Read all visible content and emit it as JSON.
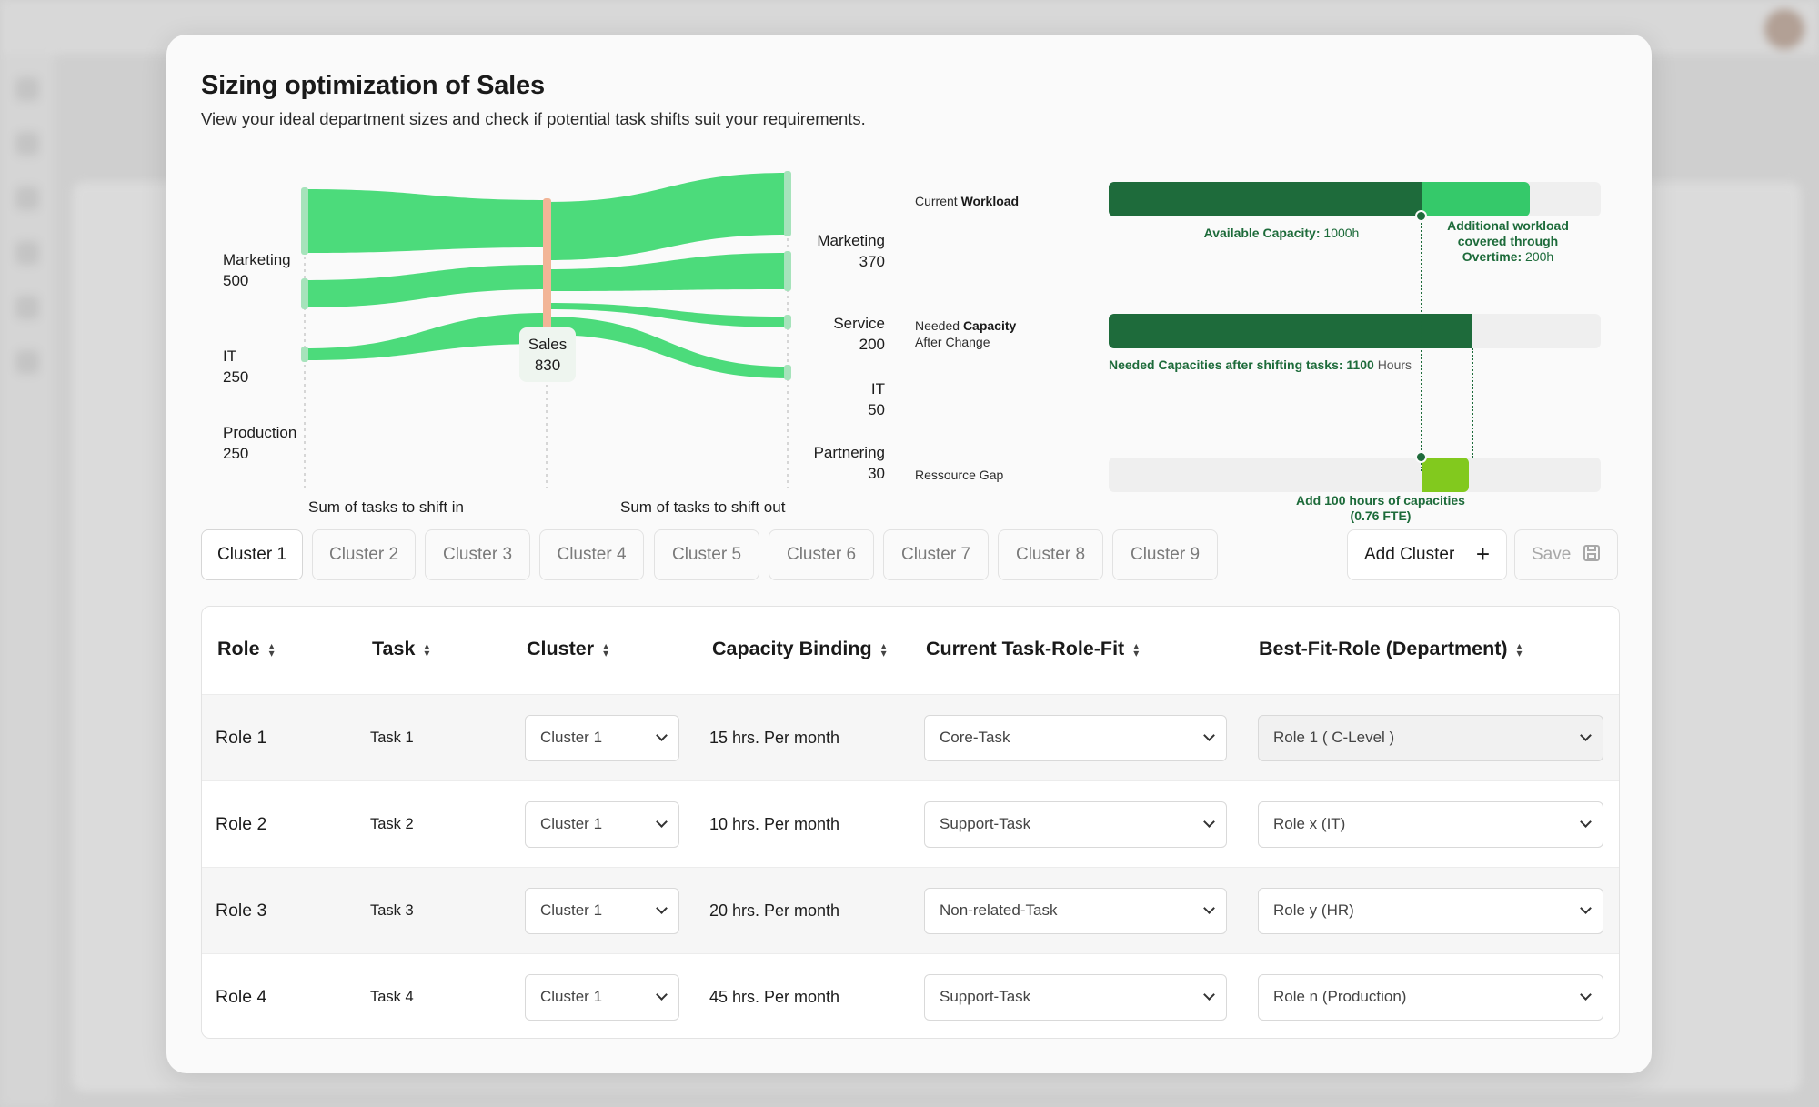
{
  "modal": {
    "title": "Sizing optimization of Sales",
    "subtitle": "View your ideal department sizes and check if potential task shifts suit your requirements."
  },
  "sankey": {
    "sources": [
      {
        "name": "Marketing",
        "value": "500"
      },
      {
        "name": "IT",
        "value": "250"
      },
      {
        "name": "Production",
        "value": "250"
      }
    ],
    "center": {
      "name": "Sales",
      "value": "830"
    },
    "targets": [
      {
        "name": "Marketing",
        "value": "370"
      },
      {
        "name": "Service",
        "value": "200"
      },
      {
        "name": "IT",
        "value": "50"
      },
      {
        "name": "Partnering",
        "value": "30"
      }
    ],
    "footer_in": "Sum of tasks to shift in",
    "footer_out": "Sum of tasks to shift out",
    "colors": {
      "flow": "#4cdb7b",
      "node_side": "#a6e3bb",
      "node_center": "#f2b597"
    }
  },
  "capacity": {
    "current": {
      "label_prefix": "Current",
      "label_bold": "Workload",
      "available_bold": "Available Capacity:",
      "available_value": "1000h",
      "overtime_line1": "Additional workload",
      "overtime_line2": "covered through",
      "overtime_bold": "Overtime:",
      "overtime_value": "200h",
      "available_fraction": 0.635,
      "overtime_fraction": 0.22
    },
    "needed": {
      "label_prefix": "Needed",
      "label_bold": "Capacity",
      "label_line2": "After Change",
      "caption_bold": "Needed Capacities after shifting tasks: 1100",
      "caption_unit": "Hours",
      "fraction": 0.74
    },
    "gap": {
      "label": "Ressource Gap",
      "caption_line1": "Add 100 hours of capacities",
      "caption_line2": "(0.76 FTE)",
      "fraction": 0.097
    },
    "colors": {
      "dark": "#1e6b3b",
      "bright": "#35c96a",
      "gap": "#82c91e",
      "track": "#efefef"
    }
  },
  "tabs": [
    "Cluster 1",
    "Cluster 2",
    "Cluster 3",
    "Cluster 4",
    "Cluster 5",
    "Cluster 6",
    "Cluster 7",
    "Cluster 8",
    "Cluster 9"
  ],
  "actions": {
    "add_cluster": "Add Cluster",
    "save": "Save"
  },
  "table": {
    "headers": [
      "Role",
      "Task",
      "Cluster",
      "Capacity Binding",
      "Current Task-Role-Fit",
      "Best-Fit-Role (Department)"
    ],
    "rows": [
      {
        "role": "Role 1",
        "task": "Task 1",
        "cluster": "Cluster 1",
        "binding": "15 hrs. Per month",
        "fit": "Core-Task",
        "best": "Role 1 ( C-Level )"
      },
      {
        "role": "Role 2",
        "task": "Task 2",
        "cluster": "Cluster 1",
        "binding": "10 hrs. Per month",
        "fit": "Support-Task",
        "best": "Role x (IT)"
      },
      {
        "role": "Role 3",
        "task": "Task 3",
        "cluster": "Cluster 1",
        "binding": "20 hrs. Per month",
        "fit": "Non-related-Task",
        "best": "Role y (HR)"
      },
      {
        "role": "Role 4",
        "task": "Task 4",
        "cluster": "Cluster 1",
        "binding": "45 hrs. Per month",
        "fit": "Support-Task",
        "best": "Role n (Production)"
      }
    ]
  }
}
